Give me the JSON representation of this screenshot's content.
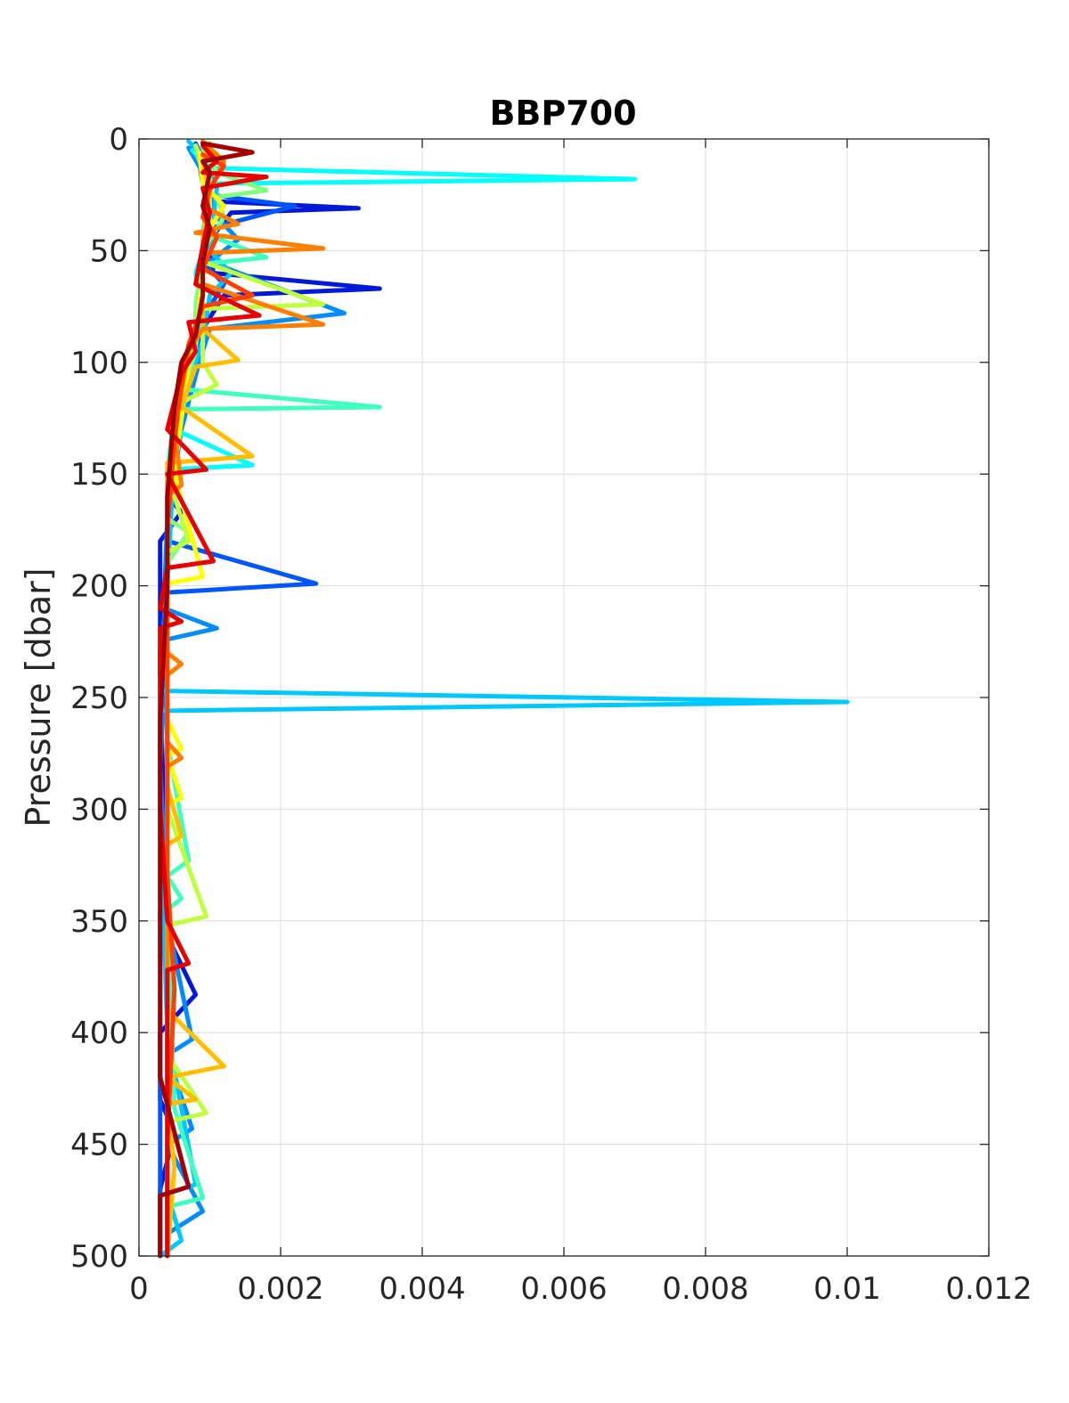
{
  "chart_data": {
    "type": "line",
    "title": "BBP700",
    "xlabel": "",
    "ylabel": "Pressure [dbar]",
    "xlim": [
      0,
      0.012
    ],
    "ylim": [
      0,
      500
    ],
    "y_reversed": true,
    "grid": true,
    "x_ticks": [
      "0",
      "0.002",
      "0.004",
      "0.006",
      "0.008",
      "0.01",
      "0.012"
    ],
    "y_ticks": [
      "0",
      "50",
      "100",
      "150",
      "200",
      "250",
      "300",
      "350",
      "400",
      "450",
      "500"
    ],
    "series": [
      {
        "color": "#0019d6",
        "points": [
          [
            0.00075,
            3
          ],
          [
            0.00085,
            10
          ],
          [
            0.0009,
            20
          ],
          [
            0.0011,
            28
          ],
          [
            0.0031,
            31
          ],
          [
            0.0013,
            33
          ],
          [
            0.001,
            45
          ],
          [
            0.00105,
            60
          ],
          [
            0.0034,
            67
          ],
          [
            0.0012,
            70
          ],
          [
            0.0009,
            85
          ],
          [
            0.0008,
            100
          ],
          [
            0.0006,
            120
          ],
          [
            0.00055,
            140
          ],
          [
            0.0004,
            160
          ],
          [
            0.0006,
            167
          ],
          [
            0.0003,
            180
          ],
          [
            0.0003,
            200
          ],
          [
            0.0003,
            240
          ],
          [
            0.00035,
            300
          ],
          [
            0.0003,
            350
          ],
          [
            0.0008,
            383
          ],
          [
            0.0003,
            400
          ],
          [
            0.0003,
            430
          ],
          [
            0.0005,
            445
          ],
          [
            0.0003,
            470
          ],
          [
            0.0003,
            500
          ]
        ]
      },
      {
        "color": "#0055ff",
        "points": [
          [
            0.0008,
            2
          ],
          [
            0.00095,
            12
          ],
          [
            0.001,
            25
          ],
          [
            0.0022,
            30
          ],
          [
            0.001,
            40
          ],
          [
            0.0009,
            55
          ],
          [
            0.0012,
            65
          ],
          [
            0.0009,
            80
          ],
          [
            0.0009,
            95
          ],
          [
            0.0007,
            110
          ],
          [
            0.0005,
            140
          ],
          [
            0.0004,
            180
          ],
          [
            0.0025,
            199
          ],
          [
            0.0004,
            203
          ],
          [
            0.0003,
            230
          ],
          [
            0.0003,
            300
          ],
          [
            0.0003,
            400
          ],
          [
            0.0003,
            500
          ]
        ]
      },
      {
        "color": "#008cff",
        "points": [
          [
            0.0007,
            4
          ],
          [
            0.0009,
            15
          ],
          [
            0.0011,
            35
          ],
          [
            0.0014,
            45
          ],
          [
            0.001,
            55
          ],
          [
            0.0029,
            78
          ],
          [
            0.001,
            85
          ],
          [
            0.00085,
            100
          ],
          [
            0.0006,
            130
          ],
          [
            0.0004,
            170
          ],
          [
            0.00035,
            210
          ],
          [
            0.0011,
            219
          ],
          [
            0.0004,
            224
          ],
          [
            0.0003,
            280
          ],
          [
            0.0004,
            350
          ],
          [
            0.00075,
            403
          ],
          [
            0.0004,
            410
          ],
          [
            0.00075,
            443
          ],
          [
            0.0004,
            450
          ],
          [
            0.0009,
            480
          ],
          [
            0.0004,
            490
          ],
          [
            0.0004,
            500
          ]
        ]
      },
      {
        "color": "#00c8ff",
        "points": [
          [
            0.0007,
            1
          ],
          [
            0.0009,
            8
          ],
          [
            0.0011,
            22
          ],
          [
            0.001,
            50
          ],
          [
            0.0013,
            60
          ],
          [
            0.001,
            70
          ],
          [
            0.0009,
            90
          ],
          [
            0.0007,
            110
          ],
          [
            0.0005,
            140
          ],
          [
            0.0004,
            200
          ],
          [
            0.0003,
            247
          ],
          [
            0.01,
            252
          ],
          [
            0.0003,
            256
          ],
          [
            0.0003,
            300
          ],
          [
            0.0004,
            400
          ],
          [
            0.0008,
            468
          ],
          [
            0.0004,
            472
          ],
          [
            0.0006,
            493
          ],
          [
            0.0003,
            500
          ]
        ]
      },
      {
        "color": "#00ffff",
        "points": [
          [
            0.00075,
            5
          ],
          [
            0.001,
            13
          ],
          [
            0.007,
            18
          ],
          [
            0.0009,
            20
          ],
          [
            0.001,
            40
          ],
          [
            0.0008,
            60
          ],
          [
            0.0009,
            80
          ],
          [
            0.0007,
            105
          ],
          [
            0.0005,
            130
          ],
          [
            0.0016,
            146
          ],
          [
            0.0004,
            148
          ],
          [
            0.0004,
            250
          ],
          [
            0.0004,
            350
          ],
          [
            0.0004,
            420
          ],
          [
            0.0004,
            500
          ]
        ]
      },
      {
        "color": "#40ffbf",
        "points": [
          [
            0.0008,
            6
          ],
          [
            0.001,
            20
          ],
          [
            0.0009,
            42
          ],
          [
            0.0018,
            53
          ],
          [
            0.0009,
            56
          ],
          [
            0.0008,
            90
          ],
          [
            0.0006,
            112
          ],
          [
            0.0034,
            120
          ],
          [
            0.0005,
            121
          ],
          [
            0.0004,
            150
          ],
          [
            0.0004,
            270
          ],
          [
            0.0007,
            323
          ],
          [
            0.0004,
            330
          ],
          [
            0.0006,
            340
          ],
          [
            0.0004,
            345
          ],
          [
            0.0005,
            434
          ],
          [
            0.0009,
            474
          ],
          [
            0.0004,
            478
          ],
          [
            0.0004,
            500
          ]
        ]
      },
      {
        "color": "#80ff80",
        "points": [
          [
            0.0009,
            4
          ],
          [
            0.0011,
            15
          ],
          [
            0.0018,
            23
          ],
          [
            0.0011,
            26
          ],
          [
            0.0012,
            35
          ],
          [
            0.0009,
            50
          ],
          [
            0.0008,
            75
          ],
          [
            0.0008,
            95
          ],
          [
            0.0006,
            115
          ],
          [
            0.0005,
            130
          ],
          [
            0.0004,
            170
          ],
          [
            0.0007,
            176
          ],
          [
            0.0004,
            190
          ],
          [
            0.0004,
            280
          ],
          [
            0.0004,
            330
          ],
          [
            0.0004,
            420
          ],
          [
            0.0004,
            500
          ]
        ]
      },
      {
        "color": "#bfff40",
        "points": [
          [
            0.0008,
            3
          ],
          [
            0.001,
            18
          ],
          [
            0.001,
            40
          ],
          [
            0.0009,
            55
          ],
          [
            0.0026,
            74
          ],
          [
            0.0009,
            76
          ],
          [
            0.0009,
            100
          ],
          [
            0.0011,
            110
          ],
          [
            0.0006,
            118
          ],
          [
            0.0004,
            150
          ],
          [
            0.0007,
            180
          ],
          [
            0.0004,
            185
          ],
          [
            0.0004,
            300
          ],
          [
            0.00095,
            348
          ],
          [
            0.0004,
            352
          ],
          [
            0.0004,
            410
          ],
          [
            0.00095,
            436
          ],
          [
            0.0004,
            440
          ],
          [
            0.0004,
            500
          ]
        ]
      },
      {
        "color": "#ffff00",
        "points": [
          [
            0.00085,
            6
          ],
          [
            0.0009,
            20
          ],
          [
            0.0012,
            30
          ],
          [
            0.0009,
            45
          ],
          [
            0.0009,
            60
          ],
          [
            0.0008,
            90
          ],
          [
            0.0007,
            100
          ],
          [
            0.0005,
            150
          ],
          [
            0.0009,
            196
          ],
          [
            0.0004,
            199
          ],
          [
            0.0004,
            260
          ],
          [
            0.0006,
            273
          ],
          [
            0.0004,
            276
          ],
          [
            0.0006,
            295
          ],
          [
            0.0004,
            298
          ],
          [
            0.0004,
            340
          ],
          [
            0.0004,
            380
          ],
          [
            0.0004,
            400
          ],
          [
            0.0004,
            500
          ]
        ]
      },
      {
        "color": "#ffbf00",
        "points": [
          [
            0.001,
            2
          ],
          [
            0.0009,
            10
          ],
          [
            0.001,
            25
          ],
          [
            0.0009,
            45
          ],
          [
            0.0009,
            70
          ],
          [
            0.0009,
            85
          ],
          [
            0.0014,
            99
          ],
          [
            0.0008,
            102
          ],
          [
            0.0006,
            120
          ],
          [
            0.0016,
            142
          ],
          [
            0.0004,
            145
          ],
          [
            0.0004,
            200
          ],
          [
            0.0004,
            290
          ],
          [
            0.0006,
            312
          ],
          [
            0.0004,
            316
          ],
          [
            0.0004,
            360
          ],
          [
            0.0004,
            390
          ],
          [
            0.0012,
            415
          ],
          [
            0.0004,
            420
          ],
          [
            0.0008,
            430
          ],
          [
            0.0004,
            432
          ],
          [
            0.0005,
            460
          ],
          [
            0.0004,
            500
          ]
        ]
      },
      {
        "color": "#ff8000",
        "points": [
          [
            0.0009,
            1
          ],
          [
            0.0012,
            10
          ],
          [
            0.0009,
            30
          ],
          [
            0.0014,
            38
          ],
          [
            0.0008,
            42
          ],
          [
            0.0026,
            49
          ],
          [
            0.0009,
            51
          ],
          [
            0.0009,
            65
          ],
          [
            0.0026,
            83
          ],
          [
            0.0009,
            85
          ],
          [
            0.0007,
            95
          ],
          [
            0.0005,
            130
          ],
          [
            0.0006,
            155
          ],
          [
            0.0004,
            160
          ],
          [
            0.0004,
            230
          ],
          [
            0.0006,
            235
          ],
          [
            0.0004,
            240
          ],
          [
            0.0004,
            270
          ],
          [
            0.0006,
            277
          ],
          [
            0.0004,
            281
          ],
          [
            0.0004,
            500
          ]
        ]
      },
      {
        "color": "#ff4000",
        "points": [
          [
            0.0009,
            7
          ],
          [
            0.0012,
            12
          ],
          [
            0.001,
            22
          ],
          [
            0.0009,
            35
          ],
          [
            0.0011,
            44
          ],
          [
            0.0009,
            58
          ],
          [
            0.0016,
            70
          ],
          [
            0.0009,
            75
          ],
          [
            0.0007,
            92
          ],
          [
            0.0006,
            110
          ],
          [
            0.0005,
            135
          ],
          [
            0.0004,
            175
          ],
          [
            0.0004,
            260
          ],
          [
            0.0004,
            330
          ],
          [
            0.0005,
            380
          ],
          [
            0.0004,
            450
          ],
          [
            0.0004,
            500
          ]
        ]
      },
      {
        "color": "#e60000",
        "points": [
          [
            0.0009,
            3
          ],
          [
            0.0011,
            10
          ],
          [
            0.0009,
            15
          ],
          [
            0.0018,
            17
          ],
          [
            0.0009,
            22
          ],
          [
            0.001,
            33
          ],
          [
            0.0009,
            48
          ],
          [
            0.0008,
            65
          ],
          [
            0.0013,
            73
          ],
          [
            0.0017,
            79
          ],
          [
            0.0007,
            82
          ],
          [
            0.0008,
            95
          ],
          [
            0.0006,
            105
          ],
          [
            0.0004,
            130
          ],
          [
            0.00095,
            148
          ],
          [
            0.0004,
            150
          ],
          [
            0.00105,
            189
          ],
          [
            0.0004,
            192
          ],
          [
            0.0003,
            210
          ],
          [
            0.0006,
            216
          ],
          [
            0.0003,
            219
          ],
          [
            0.0003,
            300
          ],
          [
            0.0004,
            350
          ],
          [
            0.0007,
            369
          ],
          [
            0.0004,
            372
          ],
          [
            0.0004,
            420
          ],
          [
            0.0004,
            500
          ]
        ]
      },
      {
        "color": "#a00000",
        "points": [
          [
            0.0009,
            2
          ],
          [
            0.0016,
            6
          ],
          [
            0.0009,
            10
          ],
          [
            0.001,
            15
          ],
          [
            0.0009,
            30
          ],
          [
            0.001,
            40
          ],
          [
            0.0009,
            55
          ],
          [
            0.0009,
            70
          ],
          [
            0.0008,
            88
          ],
          [
            0.0006,
            100
          ],
          [
            0.0005,
            120
          ],
          [
            0.0004,
            160
          ],
          [
            0.0004,
            200
          ],
          [
            0.0003,
            260
          ],
          [
            0.0003,
            300
          ],
          [
            0.0003,
            360
          ],
          [
            0.0003,
            420
          ],
          [
            0.0007,
            469
          ],
          [
            0.0003,
            473
          ],
          [
            0.0003,
            500
          ]
        ]
      }
    ]
  }
}
